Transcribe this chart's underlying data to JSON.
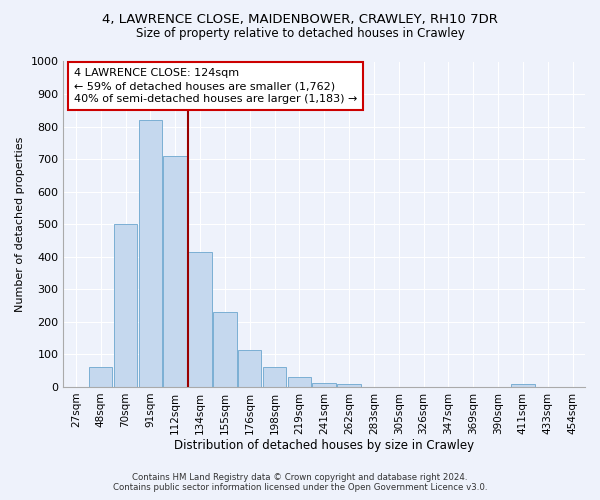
{
  "title1": "4, LAWRENCE CLOSE, MAIDENBOWER, CRAWLEY, RH10 7DR",
  "title2": "Size of property relative to detached houses in Crawley",
  "xlabel": "Distribution of detached houses by size in Crawley",
  "ylabel": "Number of detached properties",
  "bins": [
    "27sqm",
    "48sqm",
    "70sqm",
    "91sqm",
    "112sqm",
    "134sqm",
    "155sqm",
    "176sqm",
    "198sqm",
    "219sqm",
    "241sqm",
    "262sqm",
    "283sqm",
    "305sqm",
    "326sqm",
    "347sqm",
    "369sqm",
    "390sqm",
    "411sqm",
    "433sqm",
    "454sqm"
  ],
  "bar_heights": [
    0,
    60,
    500,
    820,
    710,
    415,
    230,
    115,
    60,
    30,
    12,
    8,
    0,
    0,
    0,
    0,
    0,
    0,
    10,
    0,
    0
  ],
  "bar_color": "#c5d8ee",
  "bar_edge_color": "#7bafd4",
  "vline_x": 4.5,
  "vline_color": "#990000",
  "annotation_text": "4 LAWRENCE CLOSE: 124sqm\n← 59% of detached houses are smaller (1,762)\n40% of semi-detached houses are larger (1,183) →",
  "annotation_box_color": "#ffffff",
  "annotation_box_edge": "#cc0000",
  "ylim": [
    0,
    1000
  ],
  "yticks": [
    0,
    100,
    200,
    300,
    400,
    500,
    600,
    700,
    800,
    900,
    1000
  ],
  "footer1": "Contains HM Land Registry data © Crown copyright and database right 2024.",
  "footer2": "Contains public sector information licensed under the Open Government Licence v3.0.",
  "bg_color": "#eef2fb",
  "grid_color": "#ffffff"
}
